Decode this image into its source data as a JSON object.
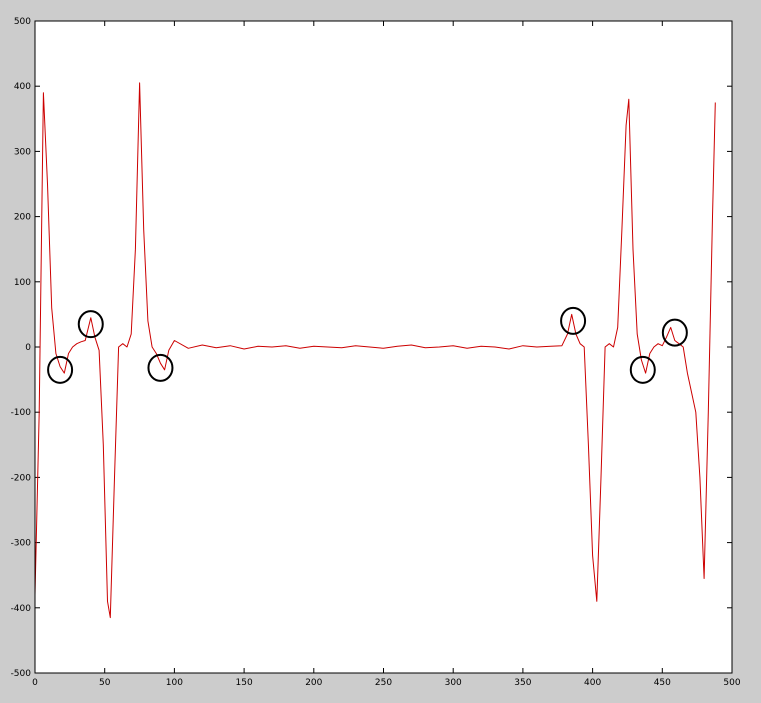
{
  "colors": {
    "figure_background": "#cccccc",
    "axes_background": "#ffffff",
    "line": "#cc0000",
    "marker": "#000000"
  },
  "chart_data": {
    "type": "line",
    "title": "",
    "xlabel": "",
    "ylabel": "",
    "xlim": [
      0,
      500
    ],
    "ylim": [
      -500,
      500
    ],
    "grid": false,
    "legend": "none",
    "x_ticks": [
      0,
      50,
      100,
      150,
      200,
      250,
      300,
      350,
      400,
      450,
      500
    ],
    "y_ticks": [
      -500,
      -400,
      -300,
      -200,
      -100,
      0,
      100,
      200,
      300,
      400,
      500
    ],
    "x_tick_labels": [
      "0",
      "50",
      "100",
      "150",
      "200",
      "250",
      "300",
      "350",
      "400",
      "450",
      "500"
    ],
    "y_tick_labels": [
      "-500",
      "-400",
      "-300",
      "-200",
      "-100",
      "0",
      "100",
      "200",
      "300",
      "400",
      "500"
    ],
    "series": [
      {
        "color": "#cc0000",
        "x": [
          0,
          3,
          6,
          9,
          12,
          15,
          18,
          21,
          24,
          27,
          30,
          33,
          36,
          40,
          43,
          46,
          49,
          52,
          54,
          57,
          60,
          63,
          66,
          69,
          72,
          75,
          78,
          81,
          84,
          87,
          90,
          93,
          96,
          100,
          110,
          120,
          130,
          140,
          150,
          160,
          170,
          180,
          190,
          200,
          210,
          220,
          230,
          240,
          250,
          260,
          270,
          280,
          290,
          300,
          310,
          320,
          330,
          340,
          350,
          360,
          370,
          378,
          382,
          385,
          388,
          391,
          394,
          397,
          400,
          403,
          406,
          409,
          412,
          415,
          418,
          421,
          424,
          426,
          429,
          432,
          435,
          438,
          441,
          444,
          447,
          450,
          453,
          456,
          459,
          462,
          465,
          468,
          471,
          474,
          477,
          480,
          483,
          486,
          488
        ],
        "y": [
          -380,
          -100,
          390,
          250,
          60,
          -10,
          -30,
          -40,
          -10,
          0,
          5,
          8,
          10,
          45,
          15,
          -5,
          -150,
          -390,
          -415,
          -200,
          0,
          5,
          0,
          20,
          150,
          405,
          180,
          40,
          0,
          -10,
          -25,
          -35,
          -5,
          10,
          -2,
          3,
          -1,
          2,
          -3,
          1,
          0,
          2,
          -2,
          1,
          0,
          -1,
          2,
          0,
          -2,
          1,
          3,
          -1,
          0,
          2,
          -2,
          1,
          0,
          -3,
          2,
          0,
          1,
          2,
          20,
          50,
          20,
          5,
          0,
          -150,
          -320,
          -390,
          -200,
          0,
          5,
          0,
          30,
          180,
          340,
          380,
          150,
          20,
          -20,
          -40,
          -10,
          0,
          5,
          2,
          15,
          30,
          10,
          5,
          0,
          -40,
          -70,
          -100,
          -200,
          -355,
          -100,
          200,
          375
        ]
      }
    ],
    "markers": [
      {
        "shape": "ellipse",
        "x": 18,
        "y": -35
      },
      {
        "shape": "ellipse",
        "x": 40,
        "y": 35
      },
      {
        "shape": "ellipse",
        "x": 90,
        "y": -32
      },
      {
        "shape": "ellipse",
        "x": 386,
        "y": 40
      },
      {
        "shape": "ellipse",
        "x": 436,
        "y": -35
      },
      {
        "shape": "ellipse",
        "x": 459,
        "y": 22
      }
    ]
  }
}
